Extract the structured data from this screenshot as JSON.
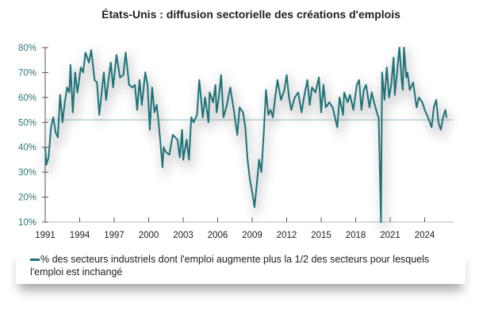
{
  "chart_data": {
    "type": "line",
    "title": "États-Unis : diffusion sectorielle des créations d'emplois",
    "xlabel": "",
    "ylabel": "",
    "xlim": [
      1991,
      2026.5
    ],
    "ylim": [
      10,
      80
    ],
    "x_ticks": [
      "1991",
      "1994",
      "1997",
      "2000",
      "2003",
      "2006",
      "2009",
      "2012",
      "2015",
      "2018",
      "2021",
      "2024"
    ],
    "y_ticks": [
      "10%",
      "20%",
      "30%",
      "40%",
      "50%",
      "60%",
      "70%",
      "80%"
    ],
    "reference_line": 51,
    "grid": false,
    "legend_position": "bottom",
    "colors": {
      "series": "#1d7278",
      "reference": "#9bbfc2"
    },
    "series": [
      {
        "name": "% des secteurs industriels dont l'emploi augmente plus la 1/2 des secteurs pour lesquels l'emploi est inchangé",
        "x": [
          1991.0,
          1991.1,
          1991.3,
          1991.5,
          1991.7,
          1991.9,
          1992.1,
          1992.3,
          1992.5,
          1992.7,
          1992.9,
          1993.1,
          1993.2,
          1993.4,
          1993.6,
          1993.8,
          1994.1,
          1994.3,
          1994.5,
          1994.8,
          1995.0,
          1995.3,
          1995.5,
          1995.7,
          1996.1,
          1996.3,
          1996.5,
          1996.7,
          1996.9,
          1997.2,
          1997.5,
          1997.8,
          1998.0,
          1998.3,
          1998.6,
          1998.8,
          1999.0,
          1999.2,
          1999.4,
          1999.7,
          1999.9,
          2000.1,
          2000.3,
          2000.5,
          2000.7,
          2000.9,
          2001.2,
          2001.3,
          2001.5,
          2001.8,
          2002.1,
          2002.5,
          2002.7,
          2002.9,
          2003.0,
          2003.3,
          2003.5,
          2003.7,
          2003.9,
          2004.2,
          2004.4,
          2004.7,
          2004.9,
          2005.2,
          2005.3,
          2005.6,
          2005.8,
          2005.9,
          2006.1,
          2006.3,
          2006.5,
          2006.8,
          2007.1,
          2007.4,
          2007.7,
          2007.9,
          2008.2,
          2008.4,
          2008.6,
          2008.8,
          2009.0,
          2009.2,
          2009.4,
          2009.6,
          2009.8,
          2010.0,
          2010.2,
          2010.4,
          2010.6,
          2010.8,
          2011.0,
          2011.2,
          2011.5,
          2011.8,
          2012.0,
          2012.2,
          2012.4,
          2012.7,
          2013.0,
          2013.3,
          2013.5,
          2013.8,
          2014.0,
          2014.2,
          2014.5,
          2014.8,
          2015.0,
          2015.2,
          2015.4,
          2015.7,
          2016.0,
          2016.4,
          2016.6,
          2016.9,
          2017.0,
          2017.3,
          2017.5,
          2017.8,
          2018.1,
          2018.3,
          2018.5,
          2018.7,
          2018.9,
          2019.2,
          2019.4,
          2019.6,
          2019.9,
          2020.0,
          2020.2,
          2020.3,
          2020.5,
          2020.7,
          2020.9,
          2021.1,
          2021.3,
          2021.4,
          2021.6,
          2021.8,
          2022.0,
          2022.1,
          2022.2,
          2022.4,
          2022.5,
          2022.7,
          2023.0,
          2023.3,
          2023.5,
          2023.8,
          2024.0,
          2024.3,
          2024.6,
          2024.8,
          2025.0,
          2025.2,
          2025.4,
          2025.6,
          2025.8,
          2025.9
        ],
        "values": [
          40,
          33,
          36,
          48,
          52,
          46,
          44,
          61,
          50,
          58,
          64,
          62,
          73,
          54,
          70,
          62,
          72,
          70,
          78,
          74,
          79,
          67,
          66,
          53,
          70,
          59,
          67,
          74,
          64,
          77,
          68,
          69,
          78,
          65,
          64,
          65,
          55,
          67,
          57,
          70,
          65,
          47,
          64,
          54,
          57,
          48,
          32,
          40,
          38,
          37,
          45,
          43,
          36,
          47,
          35,
          43,
          35,
          52,
          50,
          53,
          67,
          52,
          60,
          50,
          62,
          58,
          65,
          54,
          60,
          69,
          52,
          57,
          64,
          55,
          45,
          56,
          54,
          48,
          35,
          27,
          22,
          16,
          25,
          35,
          30,
          45,
          63,
          53,
          55,
          52,
          60,
          67,
          59,
          63,
          69,
          60,
          55,
          60,
          62,
          54,
          60,
          67,
          57,
          64,
          62,
          68,
          54,
          65,
          56,
          58,
          56,
          48,
          60,
          53,
          62,
          58,
          61,
          55,
          65,
          67,
          55,
          63,
          65,
          56,
          62,
          58,
          53,
          52,
          10,
          70,
          59,
          72,
          60,
          65,
          76,
          61,
          70,
          80,
          67,
          63,
          80,
          68,
          70,
          63,
          66,
          56,
          60,
          58,
          55,
          52,
          48,
          56,
          59,
          50,
          47,
          52,
          55,
          52
        ]
      }
    ]
  }
}
